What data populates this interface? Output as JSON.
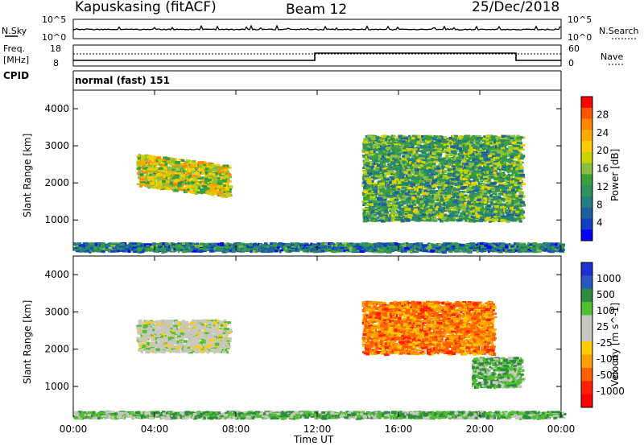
{
  "header": {
    "station": "Kapuskasing (fitACF)",
    "beam": "Beam 12",
    "date": "25/Dec/2018"
  },
  "top_panels": {
    "nsky_label": "N.Sky",
    "nsky_ticks": [
      "10^5",
      "10^0"
    ],
    "nsearch_label": "N.Search",
    "nsearch_ticks": [
      "10^5",
      "10^0"
    ],
    "freq_label_1": "Freq.",
    "freq_label_2": "[MHz]",
    "freq_ticks": [
      "18",
      "8"
    ],
    "nave_label": "Nave",
    "nave_ticks": [
      "60",
      "0"
    ],
    "cpid_label": "CPID",
    "cpid_value": "normal (fast) 151"
  },
  "chart_data": [
    {
      "type": "heatmap",
      "name": "power",
      "ylabel": "Slant Range [km]",
      "xlabel": "Time UT",
      "ylim": [
        180,
        4500
      ],
      "xlim": [
        0,
        24
      ],
      "yticks": [
        "4000",
        "3000",
        "2000",
        "1000"
      ],
      "xticks": [
        "00:00",
        "04:00",
        "08:00",
        "12:00",
        "16:00",
        "20:00",
        "00:00"
      ],
      "colorbar": {
        "label": "Power [dB]",
        "ticks": [
          "28",
          "24",
          "20",
          "16",
          "12",
          "8",
          "4"
        ],
        "colors": [
          "#ff0000",
          "#ff5500",
          "#ff8800",
          "#ffaa00",
          "#ffcc00",
          "#c8d400",
          "#88c040",
          "#3aa03a",
          "#2f9060",
          "#228080",
          "#1f5fa0",
          "#1040c0",
          "#0000ff"
        ]
      },
      "echo_regions": [
        {
          "t_start": 3.1,
          "t_end": 7.6,
          "range_top": 2800,
          "range_bottom": 1950,
          "typical_value": 18
        },
        {
          "t_start": 14.2,
          "t_end": 22.0,
          "range_top": 3300,
          "range_bottom": 1000,
          "typical_value": 12
        },
        {
          "t_start": 0.0,
          "t_end": 24.0,
          "range_top": 400,
          "range_bottom": 180,
          "typical_value": 8
        }
      ]
    },
    {
      "type": "heatmap",
      "name": "velocity",
      "ylabel": "Slant Range [km]",
      "xlabel": "Time UT",
      "ylim": [
        180,
        4500
      ],
      "xlim": [
        0,
        24
      ],
      "yticks": [
        "4000",
        "3000",
        "2000",
        "1000"
      ],
      "xticks": [
        "00:00",
        "04:00",
        "08:00",
        "12:00",
        "16:00",
        "20:00",
        "00:00"
      ],
      "colorbar": {
        "label": "Velocity [m s^-1]",
        "ticks": [
          "1000",
          "500",
          "100",
          "25",
          "-25",
          "-100",
          "-500",
          "-1000"
        ],
        "colors": [
          "#2030d0",
          "#2858c0",
          "#2f8a40",
          "#50c030",
          "#c8c8c0",
          "#c8c8c0",
          "#ffcc00",
          "#ffa000",
          "#ff6000",
          "#ff2000",
          "#ff0000"
        ]
      },
      "echo_regions": [
        {
          "t_start": 3.1,
          "t_end": 7.6,
          "range_top": 2800,
          "range_bottom": 1950,
          "typical_value": 0
        },
        {
          "t_start": 14.2,
          "t_end": 20.6,
          "range_top": 3300,
          "range_bottom": 1900,
          "typical_value": -300
        },
        {
          "t_start": 19.6,
          "t_end": 22.0,
          "range_top": 1800,
          "range_bottom": 1000,
          "typical_value": 100
        },
        {
          "t_start": 0.0,
          "t_end": 24.0,
          "range_top": 350,
          "range_bottom": 180,
          "typical_value": 100
        }
      ]
    }
  ]
}
